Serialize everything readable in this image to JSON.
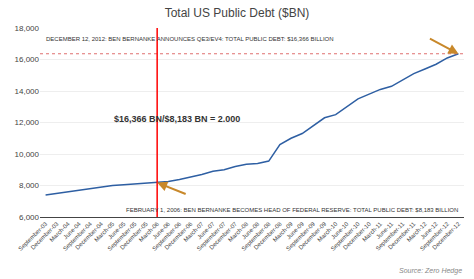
{
  "chart_data": {
    "type": "line",
    "title": "Total US Public Debt ($BN)",
    "categories": [
      "September-03",
      "December-03",
      "March-04",
      "June-04",
      "September-04",
      "December-04",
      "March-05",
      "June-05",
      "September-05",
      "December-05",
      "March-06",
      "June-06",
      "September-06",
      "December-06",
      "March-07",
      "June-07",
      "September-07",
      "December-07",
      "March-08",
      "June-08",
      "September-08",
      "December-08",
      "March-09",
      "June-09",
      "September-09",
      "December-09",
      "March-10",
      "June-10",
      "September-10",
      "December-10",
      "March-11",
      "June-11",
      "September-11",
      "December-11",
      "March-12",
      "June-12",
      "September-12",
      "December-12"
    ],
    "values": [
      7400,
      7500,
      7600,
      7700,
      7800,
      7900,
      8000,
      8050,
      8100,
      8130,
      8183,
      8250,
      8380,
      8520,
      8700,
      8900,
      9000,
      9200,
      9350,
      9400,
      9550,
      10600,
      11000,
      11300,
      11800,
      12300,
      12500,
      13000,
      13500,
      13800,
      14100,
      14300,
      14700,
      15100,
      15400,
      15700,
      16100,
      16366
    ],
    "color": "#2e5fa3",
    "ylim": [
      6000,
      18000
    ],
    "yticks": [
      {
        "value": 6000,
        "label": "6,000"
      },
      {
        "value": 8000,
        "label": "8,000"
      },
      {
        "value": 10000,
        "label": "10,000"
      },
      {
        "value": 12000,
        "label": "12,000"
      },
      {
        "value": 14000,
        "label": "14,000"
      },
      {
        "value": 16000,
        "label": "16,000"
      },
      {
        "value": 18000,
        "label": "18,000"
      }
    ],
    "grid": true,
    "hline": {
      "value": 16366,
      "color": "#e07070"
    },
    "vline": {
      "category": "March-06",
      "color": "red"
    },
    "arrows": [
      {
        "category": "March-06",
        "value": 8183,
        "color": "#c8882a"
      },
      {
        "category": "December-12",
        "value": 16366,
        "color": "#c8882a"
      }
    ],
    "annotations": [
      "DECEMBER 12, 2012: BEN BERNANKE ANNOUNCES QE3/EV4: TOTAL PUBLIC DEBT: $16,366 BILLION",
      "FEBRUARY 1, 2006: BEN BERNANKE BECOMES HEAD OF FEDERAL RESERVE: TOTAL PUBLIC DEBT: $8,183 BILLION",
      "$16,366 BN/$8,183 BN = 2.000"
    ],
    "source": "Source: Zero Hedge"
  }
}
